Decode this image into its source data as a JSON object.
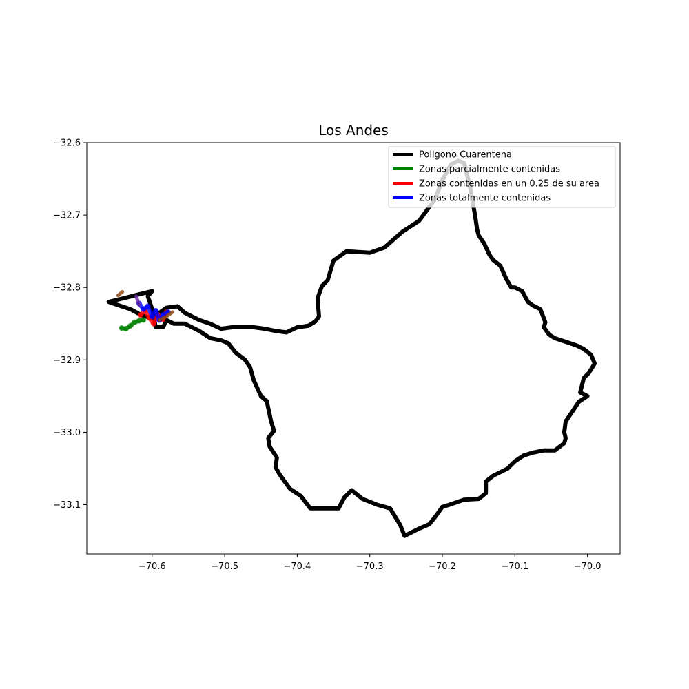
{
  "chart_data": {
    "type": "line",
    "title": "Los Andes",
    "xlabel": "",
    "ylabel": "",
    "xlim": [
      -70.69,
      -69.955
    ],
    "ylim": [
      -33.168,
      -32.6
    ],
    "xticks": [
      -70.6,
      -70.5,
      -70.4,
      -70.3,
      -70.2,
      -70.1,
      -70.0
    ],
    "xtick_labels": [
      "−70.6",
      "−70.5",
      "−70.4",
      "−70.3",
      "−70.2",
      "−70.1",
      "−70.0"
    ],
    "yticks": [
      -32.6,
      -32.7,
      -32.8,
      -32.9,
      -33.0,
      -33.1
    ],
    "ytick_labels": [
      "−32.6",
      "−32.7",
      "−32.8",
      "−32.9",
      "−33.0",
      "−33.1"
    ],
    "grid": false,
    "legend_placement": "top-right",
    "series": [
      {
        "name": "Poligono Cuarentena",
        "color": "#000000",
        "x": [
          -70.66,
          -70.645,
          -70.63,
          -70.615,
          -70.6,
          -70.59,
          -70.58,
          -70.565,
          -70.555,
          -70.545,
          -70.535,
          -70.52,
          -70.505,
          -70.49,
          -70.475,
          -70.46,
          -70.445,
          -70.43,
          -70.415,
          -70.4,
          -70.385,
          -70.375,
          -70.37,
          -70.372,
          -70.366,
          -70.358,
          -70.35,
          -70.332,
          -70.3,
          -70.28,
          -70.255,
          -70.232,
          -70.21,
          -70.2,
          -70.188,
          -70.178,
          -70.17,
          -70.162,
          -70.155,
          -70.152,
          -70.15,
          -70.142,
          -70.135,
          -70.13,
          -70.12,
          -70.112,
          -70.105,
          -70.1,
          -70.09,
          -70.082,
          -70.075,
          -70.065,
          -70.058,
          -70.06,
          -70.053,
          -70.045,
          -70.03,
          -70.015,
          -70.005,
          -69.995,
          -69.99,
          -69.998,
          -70.005,
          -70.01,
          -70.0,
          -70.012,
          -70.02,
          -70.03,
          -70.032,
          -70.03,
          -70.032,
          -70.045,
          -70.06,
          -70.075,
          -70.088,
          -70.1,
          -70.11,
          -70.13,
          -70.14,
          -70.14,
          -70.15,
          -70.17,
          -70.19,
          -70.2,
          -70.21,
          -70.218,
          -70.232,
          -70.252,
          -70.258,
          -70.272,
          -70.29,
          -70.31,
          -70.325,
          -70.335,
          -70.343,
          -70.36,
          -70.382,
          -70.395,
          -70.41,
          -70.418,
          -70.425,
          -70.43,
          -70.428,
          -70.438,
          -70.44,
          -70.432,
          -70.436,
          -70.442,
          -70.45,
          -70.46,
          -70.465,
          -70.472,
          -70.485,
          -70.495,
          -70.505,
          -70.52,
          -70.535,
          -70.545,
          -70.555,
          -70.57,
          -70.58,
          -70.585,
          -70.595,
          -70.6,
          -70.606,
          -70.6,
          -70.62,
          -70.64,
          -70.66
        ],
        "y": [
          -32.82,
          -32.825,
          -32.83,
          -32.838,
          -32.843,
          -32.835,
          -32.828,
          -32.826,
          -32.835,
          -32.84,
          -32.845,
          -32.85,
          -32.857,
          -32.855,
          -32.855,
          -32.855,
          -32.857,
          -32.86,
          -32.862,
          -32.855,
          -32.853,
          -32.847,
          -32.84,
          -32.815,
          -32.798,
          -32.79,
          -32.763,
          -32.75,
          -32.752,
          -32.745,
          -32.723,
          -32.708,
          -32.678,
          -32.652,
          -32.63,
          -32.625,
          -32.628,
          -32.66,
          -32.7,
          -32.72,
          -32.728,
          -32.74,
          -32.755,
          -32.762,
          -32.77,
          -32.788,
          -32.8,
          -32.8,
          -32.805,
          -32.82,
          -32.825,
          -32.83,
          -32.848,
          -32.855,
          -32.865,
          -32.87,
          -32.875,
          -32.88,
          -32.885,
          -32.893,
          -32.905,
          -32.918,
          -32.925,
          -32.945,
          -32.95,
          -32.958,
          -32.97,
          -32.985,
          -33.0,
          -33.008,
          -33.015,
          -33.025,
          -33.025,
          -33.028,
          -33.032,
          -33.04,
          -33.05,
          -33.06,
          -33.068,
          -33.084,
          -33.092,
          -33.093,
          -33.1,
          -33.103,
          -33.117,
          -33.127,
          -33.133,
          -33.143,
          -33.128,
          -33.105,
          -33.1,
          -33.092,
          -33.08,
          -33.09,
          -33.105,
          -33.105,
          -33.105,
          -33.088,
          -33.078,
          -33.067,
          -33.057,
          -33.048,
          -33.035,
          -33.02,
          -33.008,
          -32.998,
          -32.985,
          -32.957,
          -32.95,
          -32.928,
          -32.91,
          -32.9,
          -32.89,
          -32.877,
          -32.873,
          -32.87,
          -32.86,
          -32.855,
          -32.85,
          -32.85,
          -32.845,
          -32.855,
          -32.855,
          -32.83,
          -32.812,
          -32.805,
          -32.81,
          -32.815,
          -32.82
        ]
      },
      {
        "name": "Zonas parcialmente contenidas",
        "color": "#008000",
        "x": [
          -70.642,
          -70.636,
          -70.63,
          -70.624,
          -70.618,
          -70.612
        ],
        "y": [
          -32.856,
          -32.857,
          -32.853,
          -32.848,
          -32.846,
          -32.845
        ]
      },
      {
        "name": "Zonas contenidas en un 0.25 de su area",
        "color": "#ff0000",
        "x": [
          -70.616,
          -70.61,
          -70.604,
          -70.598,
          -70.592,
          -70.585,
          -70.58
        ],
        "y": [
          -32.838,
          -32.832,
          -32.842,
          -32.85,
          -32.838,
          -32.844,
          -32.834
        ]
      },
      {
        "name": "Zonas totalmente contenidas",
        "color": "#0000ff",
        "x": [
          -70.618,
          -70.612,
          -70.606,
          -70.6,
          -70.595,
          -70.59,
          -70.585,
          -70.578
        ],
        "y": [
          -32.822,
          -32.83,
          -32.826,
          -32.84,
          -32.832,
          -32.845,
          -32.838,
          -32.834
        ]
      }
    ],
    "overlay_marks": [
      {
        "color": "#8b4513",
        "x": [
          -70.647,
          -70.641
        ],
        "y": [
          -32.811,
          -32.806
        ]
      },
      {
        "color": "#8b4513",
        "x": [
          -70.59,
          -70.58,
          -70.572
        ],
        "y": [
          -32.845,
          -32.84,
          -32.834
        ]
      },
      {
        "color": "#6a2ca0",
        "x": [
          -70.622,
          -70.62,
          -70.618
        ],
        "y": [
          -32.812,
          -32.818,
          -32.824
        ]
      }
    ]
  }
}
